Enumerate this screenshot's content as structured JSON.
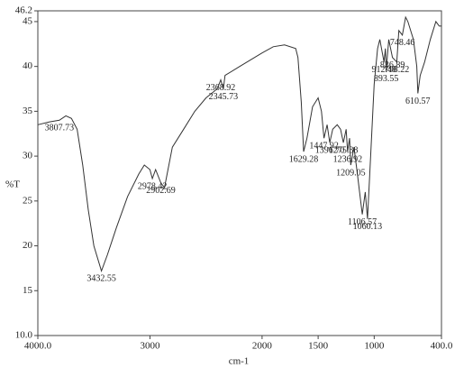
{
  "chart_data": {
    "type": "line",
    "xlabel": "cm-1",
    "ylabel": "%T",
    "x": [
      4000,
      3900,
      3807.73,
      3750,
      3700,
      3650,
      3600,
      3550,
      3500,
      3432.55,
      3380,
      3300,
      3200,
      3100,
      3050,
      3000,
      2978.42,
      2950,
      2902.69,
      2870,
      2800,
      2700,
      2600,
      2500,
      2400,
      2368.92,
      2345.73,
      2330,
      2200,
      2000,
      1900,
      1800,
      1700,
      1680,
      1650,
      1629.28,
      1600,
      1550,
      1500,
      1470,
      1447.92,
      1420,
      1396.7,
      1370,
      1330,
      1300,
      1275.38,
      1250,
      1236.92,
      1220,
      1209.05,
      1180,
      1150,
      1106.57,
      1080,
      1060.13,
      1040,
      1000,
      970,
      950,
      912.48,
      900,
      893.55,
      870,
      836.89,
      798.22,
      780,
      748.46,
      720,
      700,
      650,
      620,
      610.57,
      590,
      550,
      500,
      450,
      420,
      400
    ],
    "values": [
      33.5,
      33.8,
      34.0,
      34.5,
      34.2,
      33,
      29,
      24,
      20,
      17.2,
      19,
      22,
      25.5,
      28,
      29,
      28.5,
      27.5,
      28.5,
      27.0,
      26.5,
      31,
      33,
      35,
      36.5,
      37.5,
      38.5,
      37.5,
      39,
      40,
      41.5,
      42.2,
      42.4,
      42,
      41,
      36,
      30.5,
      32,
      35.5,
      36.5,
      35,
      32,
      33.5,
      31.5,
      33,
      33.5,
      33,
      31.5,
      33,
      30.5,
      32,
      29,
      31,
      28,
      23.5,
      26,
      23.0,
      28,
      38,
      42,
      43,
      40.5,
      42,
      39.5,
      43,
      41,
      40.5,
      44,
      43.5,
      45.5,
      45,
      43,
      40,
      37,
      39,
      40.5,
      43,
      45,
      44.5,
      44.5
    ],
    "color": "#333333",
    "xlim": [
      4000,
      400
    ],
    "xticks": [
      {
        "value": 4000,
        "label": "4000.0"
      },
      3000,
      2000,
      1500,
      1000,
      {
        "value": 400,
        "label": "400.0"
      }
    ],
    "ylim": [
      10,
      46.2
    ],
    "yticks": [
      {
        "value": 10,
        "label": "10.0"
      },
      15,
      20,
      25,
      30,
      35,
      40,
      45,
      {
        "value": 46.2,
        "label": "46.2"
      }
    ],
    "annotations": [
      {
        "text": "3807.73",
        "x": 3807.73,
        "y": 34.0
      },
      {
        "text": "3432.55",
        "x": 3432.55,
        "y": 17.2
      },
      {
        "text": "2978.42",
        "x": 2978.42,
        "y": 27.5
      },
      {
        "text": "2902.69",
        "x": 2902.69,
        "y": 27.0
      },
      {
        "text": "2368.92",
        "x": 2368.92,
        "y": 38.5
      },
      {
        "text": "2345.73",
        "x": 2345.73,
        "y": 37.5
      },
      {
        "text": "1629.28",
        "x": 1629.28,
        "y": 30.5
      },
      {
        "text": "1447.92",
        "x": 1447.92,
        "y": 32
      },
      {
        "text": "1396.70",
        "x": 1396.7,
        "y": 31.5
      },
      {
        "text": "1275.38",
        "x": 1275.38,
        "y": 31.5
      },
      {
        "text": "1236.92",
        "x": 1236.92,
        "y": 30.5
      },
      {
        "text": "1209.05",
        "x": 1209.05,
        "y": 29
      },
      {
        "text": "1106.57",
        "x": 1106.57,
        "y": 23.5
      },
      {
        "text": "1060.13",
        "x": 1060.13,
        "y": 23.0
      },
      {
        "text": "912.48",
        "x": 912.48,
        "y": 40.5
      },
      {
        "text": "893.55",
        "x": 893.55,
        "y": 39.5
      },
      {
        "text": "836.89",
        "x": 836.89,
        "y": 41
      },
      {
        "text": "798.22",
        "x": 798.22,
        "y": 40.5
      },
      {
        "text": "748.46",
        "x": 748.46,
        "y": 43.5
      },
      {
        "text": "610.57",
        "x": 610.57,
        "y": 37
      }
    ]
  }
}
